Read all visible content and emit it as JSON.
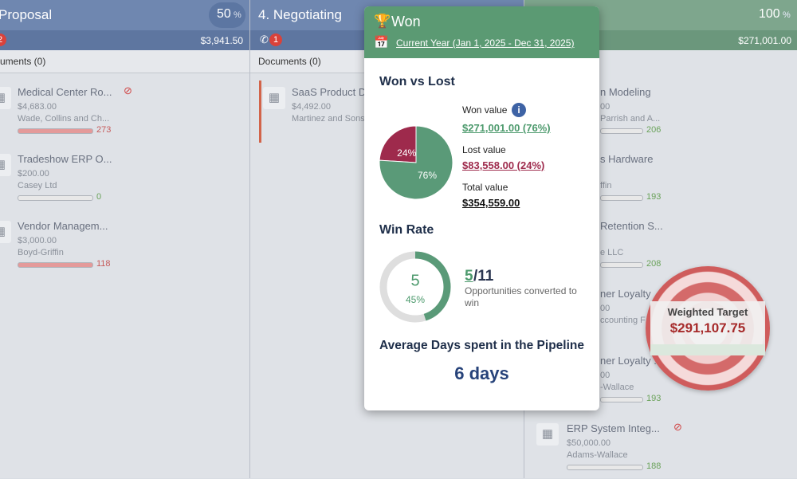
{
  "columns": [
    {
      "title": "Proposal",
      "percent": "50",
      "percent_unit": "%",
      "badge": "2",
      "amount": "$3,941.50",
      "documents": "uments (0)",
      "cards": [
        {
          "name": "Medical Center Ro...",
          "amount": "$4,683.00",
          "company": "Wade, Collins and Ch...",
          "days": "273"
        },
        {
          "name": "Tradeshow ERP O...",
          "amount": "$200.00",
          "company": "Casey Ltd",
          "days": "0"
        },
        {
          "name": "Vendor Managem...",
          "amount": "$3,000.00",
          "company": "Boyd-Griffin",
          "days": "118"
        }
      ]
    },
    {
      "title": "4. Negotiating",
      "badge": "1",
      "documents": "Documents (0)",
      "cards": [
        {
          "name": "SaaS Product D",
          "amount": "$4,492.00",
          "company": "Martinez and Sons"
        }
      ]
    },
    {
      "percent": "100",
      "percent_unit": "%",
      "amount": "$271,001.00",
      "cards": [
        {
          "name": "n Modeling",
          "amount": "00",
          "company": "Parrish and A...",
          "days": "206"
        },
        {
          "name": "s Hardware",
          "company": "ffin",
          "days": "193"
        },
        {
          "name": "Retention S...",
          "company": "e LLC",
          "days": "208"
        },
        {
          "name": "ner Loyalty",
          "amount": "00",
          "company": "ccounting F"
        },
        {
          "name": "ner Loyalty ...",
          "amount": "00",
          "company": "-Wallace",
          "days": "193"
        },
        {
          "name": "ERP System Integ...",
          "amount": "$50,000.00",
          "company": "Adams-Wallace",
          "days": "188"
        }
      ]
    }
  ],
  "popup": {
    "title": "Won",
    "period": "Current Year (Jan 1, 2025 - Dec 31, 2025)",
    "won_vs_lost": {
      "heading": "Won vs Lost",
      "values": [
        24,
        76
      ],
      "value_labels": [
        "24%",
        "76%"
      ],
      "colors": [
        "#9e2a4c",
        "#5a9a78"
      ],
      "won_label": "Won value",
      "won_value": "$271,001.00 (76%)",
      "lost_label": "Lost value",
      "lost_value": "$83,558.00 (24%)",
      "total_label": "Total value",
      "total_value": "$354,559.00"
    },
    "win_rate": {
      "heading": "Win Rate",
      "won": 5,
      "percent": 45,
      "percent_label": "45%",
      "total": "/11",
      "description": "Opportunities converted to win"
    },
    "avg_days": {
      "heading": "Average Days spent in the Pipeline",
      "value": "6 days"
    }
  },
  "weighted_target": {
    "label": "Weighted Target",
    "value": "$291,107.75"
  }
}
